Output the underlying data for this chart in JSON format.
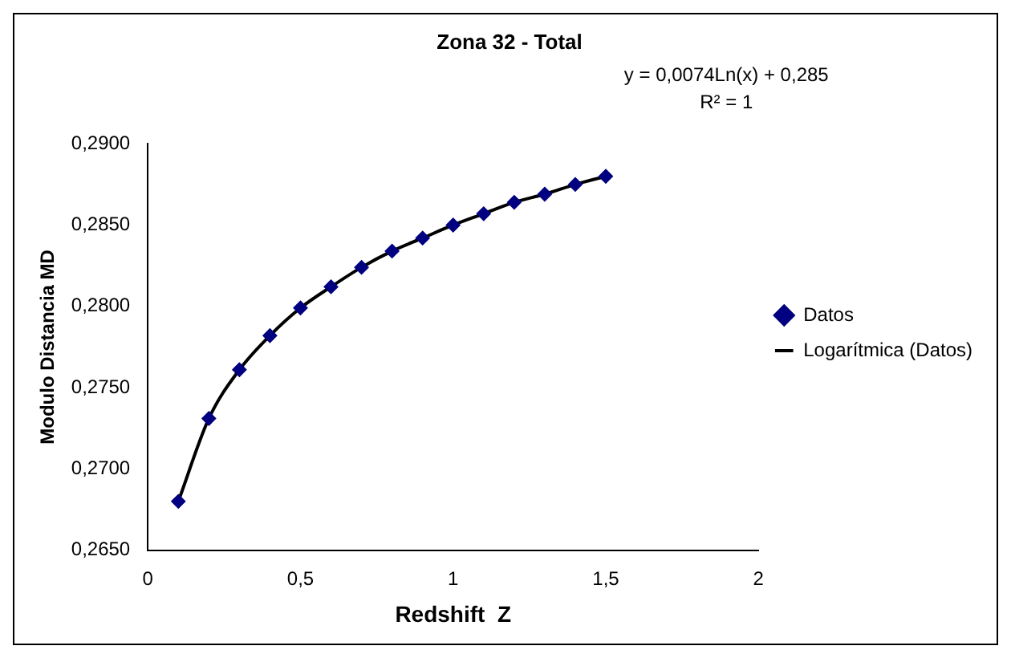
{
  "chart_data": {
    "type": "scatter",
    "title": "Zona 32 - Total",
    "xlabel": "Redshift  Z",
    "ylabel": "Modulo Distancia MD",
    "annotations": [
      "y = 0,0074Ln(x) + 0,285",
      "R² = 1"
    ],
    "x": [
      0.1,
      0.2,
      0.3,
      0.4,
      0.5,
      0.6,
      0.7,
      0.8,
      0.9,
      1.0,
      1.1,
      1.2,
      1.3,
      1.4,
      1.5
    ],
    "series": [
      {
        "name": "Datos",
        "color": "#000080",
        "marker": "diamond",
        "values": [
          0.268,
          0.2731,
          0.2761,
          0.2782,
          0.2799,
          0.2812,
          0.2824,
          0.2834,
          0.2842,
          0.285,
          0.2857,
          0.2864,
          0.2869,
          0.2875,
          0.288
        ]
      },
      {
        "name": "Logarítmica (Datos)",
        "type": "line",
        "color": "#000000",
        "marker": "none",
        "x": [
          0.1,
          0.2,
          0.3,
          0.4,
          0.5,
          0.6,
          0.7,
          0.8,
          0.9,
          1.0,
          1.1,
          1.2,
          1.3,
          1.4,
          1.5
        ],
        "values": [
          0.268,
          0.2731,
          0.2761,
          0.2782,
          0.2799,
          0.2812,
          0.2824,
          0.2834,
          0.2842,
          0.285,
          0.2857,
          0.2864,
          0.2869,
          0.2875,
          0.288
        ]
      }
    ],
    "xlim": [
      0,
      2
    ],
    "xticks": [
      0,
      {
        "value": 0.5,
        "label": "0,5"
      },
      1,
      {
        "value": 1.5,
        "label": "1,5"
      },
      2
    ],
    "ylim": [
      0.265,
      0.29
    ],
    "yticks": [
      {
        "value": 0.265,
        "label": "0,2650"
      },
      {
        "value": 0.27,
        "label": "0,2700"
      },
      {
        "value": 0.275,
        "label": "0,2750"
      },
      {
        "value": 0.28,
        "label": "0,2800"
      },
      {
        "value": 0.285,
        "label": "0,2850"
      },
      {
        "value": 0.29,
        "label": "0,2900"
      }
    ],
    "grid": false,
    "legend": "right"
  }
}
